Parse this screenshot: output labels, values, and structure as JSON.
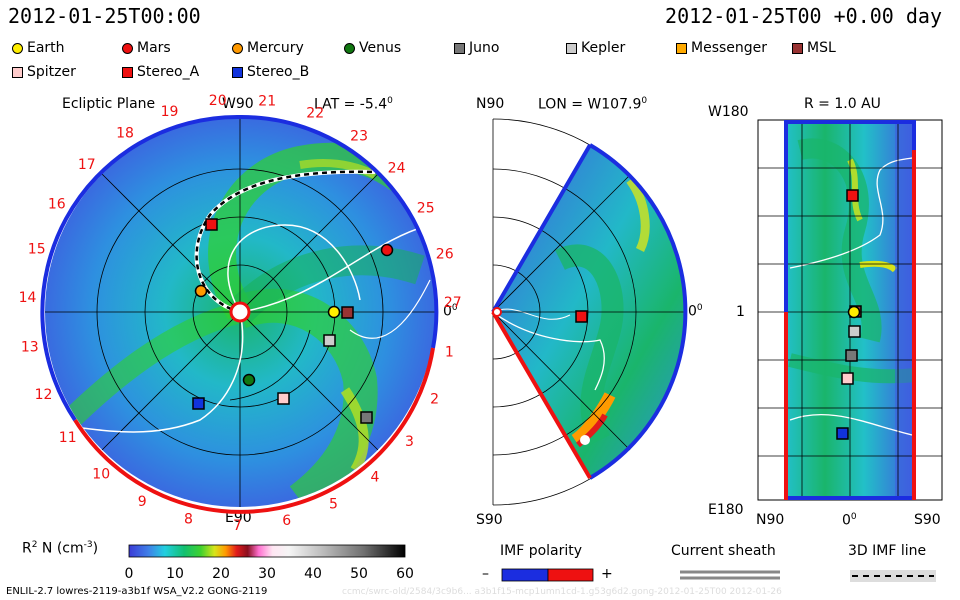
{
  "header": {
    "timestamp_left": "2012-01-25T00:00",
    "timestamp_right": "2012-01-25T00 +0.00 day"
  },
  "legend": [
    {
      "name": "Earth",
      "shape": "circle",
      "color": "#ffee00"
    },
    {
      "name": "Mars",
      "shape": "circle",
      "color": "#ee1111"
    },
    {
      "name": "Mercury",
      "shape": "circle",
      "color": "#ff9900"
    },
    {
      "name": "Venus",
      "shape": "circle",
      "color": "#117711"
    },
    {
      "name": "Juno",
      "shape": "square",
      "color": "#777777"
    },
    {
      "name": "Kepler",
      "shape": "square",
      "color": "#cccccc"
    },
    {
      "name": "Messenger",
      "shape": "square",
      "color": "#ffaa00"
    },
    {
      "name": "MSL",
      "shape": "square",
      "color": "#993333"
    },
    {
      "name": "Spitzer",
      "shape": "square",
      "color": "#ffcccc"
    },
    {
      "name": "Stereo_A",
      "shape": "square",
      "color": "#ee1111"
    },
    {
      "name": "Stereo_B",
      "shape": "square",
      "color": "#1133dd"
    }
  ],
  "panel_ecliptic": {
    "title": "Ecliptic Plane",
    "top_label": "W90",
    "bottom_label": "E90",
    "right_label": "0",
    "right_label_sup": "0",
    "lat_label": "LAT = -5.4",
    "lat_sup": "0",
    "clock_numbers": [
      "20",
      "21",
      "22",
      "23",
      "24",
      "25",
      "26",
      "27",
      "1",
      "2",
      "3",
      "4",
      "5",
      "6",
      "7",
      "8",
      "9",
      "10",
      "11",
      "12",
      "13",
      "14",
      "15",
      "16",
      "17",
      "18",
      "19"
    ]
  },
  "panel_meridional": {
    "top_left": "N90",
    "bottom_left": "S90",
    "lon_label": "LON = W107.9",
    "lon_sup": "0",
    "right_label": "0",
    "right_sup": "0"
  },
  "panel_r": {
    "title": "R = 1.0 AU",
    "top_left": "W180",
    "bottom_left": "E180",
    "mid_left": "1",
    "bottom_x_left": "N90",
    "bottom_x_mid": "0",
    "bottom_x_mid_sup": "0",
    "bottom_x_right": "S90"
  },
  "colorbar": {
    "label": "R",
    "label_sup": "2",
    "label_rest": " N (cm",
    "label_unit_sup": "-3",
    "label_close": ")",
    "ticks": [
      "0",
      "10",
      "20",
      "30",
      "40",
      "50",
      "60"
    ]
  },
  "imf_polarity": {
    "title": "IMF polarity",
    "minus": "–",
    "plus": "+"
  },
  "current_sheath": {
    "title": "Current sheath"
  },
  "imf_line": {
    "title": "3D IMF line"
  },
  "footer": {
    "model_info": "ENLIL-2.7 lowres-2119-a3b1f WSA_V2.2 GONG-2119",
    "watermark": "ccmc/swrc-old/2584/3c9b6... a3b1f15-mcp1umn1cd-1.g53g6d2.gong-2012-01-25T00   2012-01-26"
  }
}
